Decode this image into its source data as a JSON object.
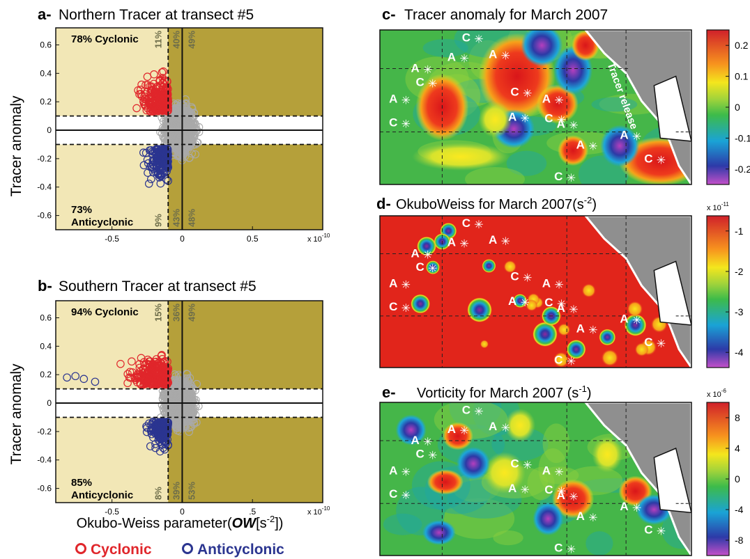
{
  "panels": {
    "a": {
      "letter": "a-",
      "title": "Northern Tracer at transect #5",
      "ylabel": "Tracer anomaly",
      "xlim": [
        -9e-11,
        1e-10
      ],
      "ylim": [
        -0.7,
        0.72
      ],
      "yticks": [
        {
          "v": 0.6,
          "t": "0.6"
        },
        {
          "v": 0.4,
          "t": "0.4"
        },
        {
          "v": 0.2,
          "t": "0.2"
        },
        {
          "v": 0,
          "t": "0"
        },
        {
          "v": -0.2,
          "t": "-0.2"
        },
        {
          "v": -0.4,
          "t": "-0.4"
        },
        {
          "v": -0.6,
          "t": "-0.6"
        }
      ],
      "xticks": [
        {
          "v": -5e-11,
          "t": "-0.5"
        },
        {
          "v": 0,
          "t": "0"
        },
        {
          "v": 5e-11,
          "t": "0.5"
        }
      ],
      "xexp": "x 10",
      "xexp_sup": "-10",
      "ow_threshold": -1e-11,
      "anomaly_threshold": 0.1,
      "cyc_text": "78% Cyclonic",
      "anti_pct": "73%",
      "anti_word": "Anticyclonic",
      "pct_top": [
        "11%",
        "40%",
        "49%"
      ],
      "pct_bottom": [
        "9%",
        "43%",
        "48%"
      ]
    },
    "b": {
      "letter": "b-",
      "title": "Southern Tracer at transect #5",
      "ylabel": "Tracer anomaly",
      "xlim": [
        -9e-11,
        1e-10
      ],
      "ylim": [
        -0.7,
        0.72
      ],
      "yticks": [
        {
          "v": 0.6,
          "t": "0.6"
        },
        {
          "v": 0.4,
          "t": "0.4"
        },
        {
          "v": 0.2,
          "t": "0.2"
        },
        {
          "v": 0,
          "t": "0"
        },
        {
          "v": -0.2,
          "t": "-0.2"
        },
        {
          "v": -0.4,
          "t": "-0.4"
        },
        {
          "v": -0.6,
          "t": "-0.6"
        }
      ],
      "xticks": [
        {
          "v": -5e-11,
          "t": "-0.5"
        },
        {
          "v": 0,
          "t": "0"
        },
        {
          "v": 5e-11,
          "t": ".5"
        }
      ],
      "xexp": "x 10",
      "xexp_sup": "-10",
      "ow_threshold": -1e-11,
      "anomaly_threshold": 0.1,
      "cyc_text": "94% Cyclonic",
      "anti_pct": "85%",
      "anti_word": "Anticyclonic",
      "pct_top": [
        "15%",
        "36%",
        "49%"
      ],
      "pct_bottom": [
        "8%",
        "39%",
        "53%"
      ]
    },
    "c": {
      "letter": "c-",
      "title": "Tracer anomaly for March 2007",
      "cbar_ticks": [
        "0.2",
        "0.1",
        "0",
        "-0.1",
        "-0.2"
      ],
      "cbar_exp": "",
      "annotation": "Tracer release"
    },
    "d": {
      "letter": "d-",
      "title_pre": "OkuboWeiss for March 2007(s",
      "title_sup": "-2",
      "title_post": ")",
      "cbar_ticks": [
        "-1",
        "-2",
        "-3",
        "-4"
      ],
      "cbar_exp": "x 10",
      "cbar_exp_sup": "-11"
    },
    "e": {
      "letter": "e-",
      "title_pre": "Vorticity for March 2007 (s",
      "title_sup": "-1",
      "title_post": ")",
      "cbar_ticks": [
        "8",
        "4",
        "0",
        "-4",
        "-8"
      ],
      "cbar_exp": "x 10",
      "cbar_exp_sup": "-6"
    }
  },
  "xlabel_pre": "Okubo-Weiss parameter(",
  "xlabel_sym": "OW",
  "xlabel_post": "[s",
  "xlabel_sup": "-2",
  "xlabel_end": "])",
  "legend": [
    {
      "marker": "o",
      "label": "Cyclonic",
      "color": "#e0262b"
    },
    {
      "marker": "o",
      "label": "Anticyclonic",
      "color": "#2b3590"
    }
  ],
  "colors": {
    "cyclonic": "#e0262b",
    "anticyclonic": "#2b3590",
    "neutral": "#a9a9a9",
    "zone_light": "#f2e7b6",
    "zone_dark": "#b5a03a",
    "band": "#ffffff",
    "map_green": "#45b649",
    "map_red": "#e1251b",
    "land": "#8f8f8f",
    "pct_color": "#6d6d4a"
  },
  "chart_data": [
    {
      "type": "scatter",
      "panel": "a",
      "title": "Northern Tracer at transect #5",
      "xlabel": "Okubo-Weiss parameter(OW[s-2])",
      "ylabel": "Tracer anomaly",
      "xlim": [
        -9e-11,
        1e-10
      ],
      "ylim": [
        -0.7,
        0.72
      ],
      "series": [
        {
          "name": "Cyclonic",
          "summary": "clustered at OW -0.4e-10 to -0.1e-10, anomaly 0.12 to 0.5"
        },
        {
          "name": "Anticyclonic",
          "summary": "clustered at OW -0.35e-10 to -0.1e-10, anomaly -0.5 to -0.12"
        }
      ],
      "annotations": [
        "78% Cyclonic",
        "73% Anticyclonic",
        "11%",
        "40%",
        "49%",
        "9%",
        "43%",
        "48%"
      ]
    },
    {
      "type": "scatter",
      "panel": "b",
      "title": "Southern Tracer at transect #5",
      "xlabel": "Okubo-Weiss parameter(OW[s-2])",
      "ylabel": "Tracer anomaly",
      "xlim": [
        -9e-11,
        1e-10
      ],
      "ylim": [
        -0.7,
        0.72
      ],
      "series": [
        {
          "name": "Cyclonic",
          "summary": "clustered at OW -0.6e-10 to -0.1e-10, anomaly 0.12 to 0.5"
        },
        {
          "name": "Anticyclonic",
          "summary": "clustered at OW -0.35e-10 to -0.1e-10, anomaly -0.45 to -0.12"
        }
      ],
      "annotations": [
        "94% Cyclonic",
        "85% Anticyclonic",
        "15%",
        "36%",
        "49%",
        "8%",
        "39%",
        "53%"
      ]
    },
    {
      "type": "heatmap",
      "panel": "c",
      "title": "Tracer anomaly for March 2007",
      "colorbar_range": [
        -0.28,
        0.28
      ]
    },
    {
      "type": "heatmap",
      "panel": "d",
      "title": "OkuboWeiss for March 2007(s-2)",
      "colorbar_range": [
        -5,
        -0.2
      ],
      "colorbar_scale": "x 10^-11"
    },
    {
      "type": "heatmap",
      "panel": "e",
      "title": "Vorticity for March 2007 (s-1)",
      "colorbar_range": [
        -10,
        10
      ],
      "colorbar_scale": "x 10^-6"
    }
  ]
}
